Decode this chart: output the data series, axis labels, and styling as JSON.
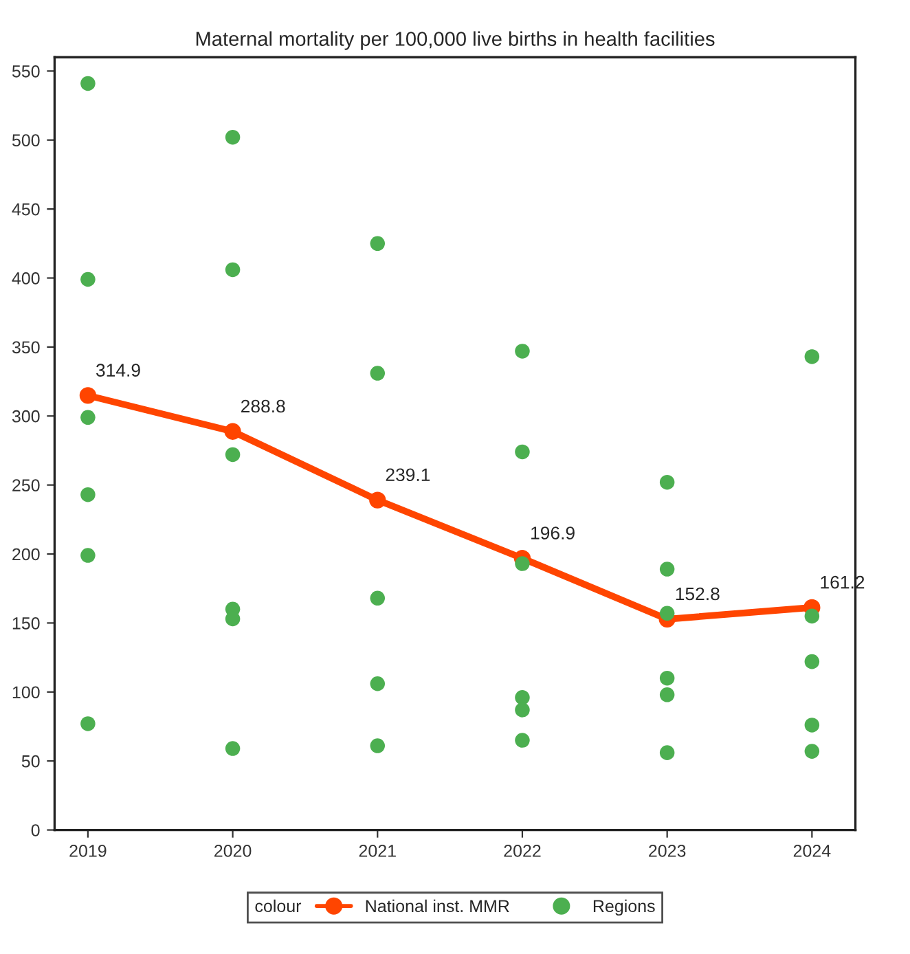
{
  "chart_data": {
    "type": "line",
    "title": "Maternal mortality per 100,000 live births in health facilities",
    "legend_title": "colour",
    "legend": "bottom",
    "grid": false,
    "xlim": [
      2018.77,
      2024.3
    ],
    "xticks": [
      2019,
      2020,
      2021,
      2022,
      2023,
      2024
    ],
    "ylim": [
      0,
      560
    ],
    "yticks": [
      0,
      50,
      100,
      150,
      200,
      250,
      300,
      350,
      400,
      450,
      500,
      550
    ],
    "series": [
      {
        "name": "Regions",
        "type": "scatter",
        "color": "#4caf50",
        "marker": "circle",
        "x": [
          2019,
          2019,
          2019,
          2019,
          2019,
          2019,
          2020,
          2020,
          2020,
          2020,
          2020,
          2020,
          2021,
          2021,
          2021,
          2021,
          2021,
          2022,
          2022,
          2022,
          2022,
          2022,
          2022,
          2023,
          2023,
          2023,
          2023,
          2023,
          2023,
          2024,
          2024,
          2024,
          2024,
          2024
        ],
        "values": [
          541,
          399,
          299,
          243,
          199,
          77,
          502,
          406,
          272,
          160,
          153,
          59,
          425,
          331,
          168,
          106,
          61,
          347,
          274,
          193,
          96,
          87,
          65,
          252,
          189,
          157,
          110,
          98,
          56,
          343,
          155,
          122,
          76,
          57
        ]
      },
      {
        "name": "National inst. MMR",
        "color": "#ff4500",
        "marker": "circle",
        "line_style": "solid",
        "x": [
          2019,
          2020,
          2021,
          2022,
          2023,
          2024
        ],
        "values": [
          314.9,
          288.8,
          239.1,
          196.9,
          152.8,
          161.2
        ],
        "value_labels": [
          "314.9",
          "288.8",
          "239.1",
          "196.9",
          "152.8",
          "161.2"
        ]
      }
    ]
  }
}
